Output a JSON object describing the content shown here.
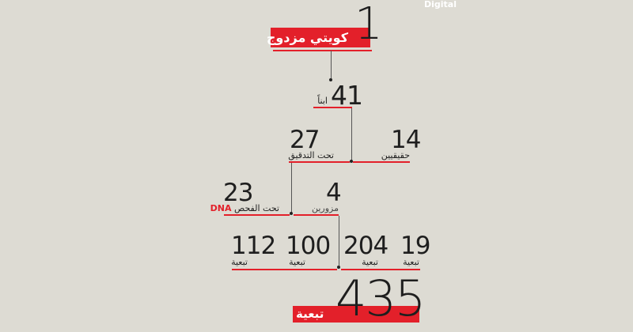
{
  "logo": "Digital",
  "colors": {
    "accent": "#e3202a",
    "background": "#dddbd3",
    "text": "#1e1e1e"
  },
  "root": {
    "value": "1",
    "label": "كويتي مزدوج"
  },
  "children": {
    "value": "41",
    "label": "ابناً"
  },
  "real": {
    "value": "14",
    "label": "حقيقيين"
  },
  "checking": {
    "value": "27",
    "label": "تحت التدقيق"
  },
  "dna": {
    "value": "23",
    "label": "تحت الفحص",
    "tag": "DNA"
  },
  "fake": {
    "value": "4",
    "label": "مزورين"
  },
  "dependents": [
    {
      "value": "112",
      "label": "تبعية"
    },
    {
      "value": "100",
      "label": "تبعية"
    },
    {
      "value": "204",
      "label": "تبعية"
    },
    {
      "value": "19",
      "label": "تبعية"
    }
  ],
  "total": {
    "value": "435",
    "label": "تبعية"
  }
}
